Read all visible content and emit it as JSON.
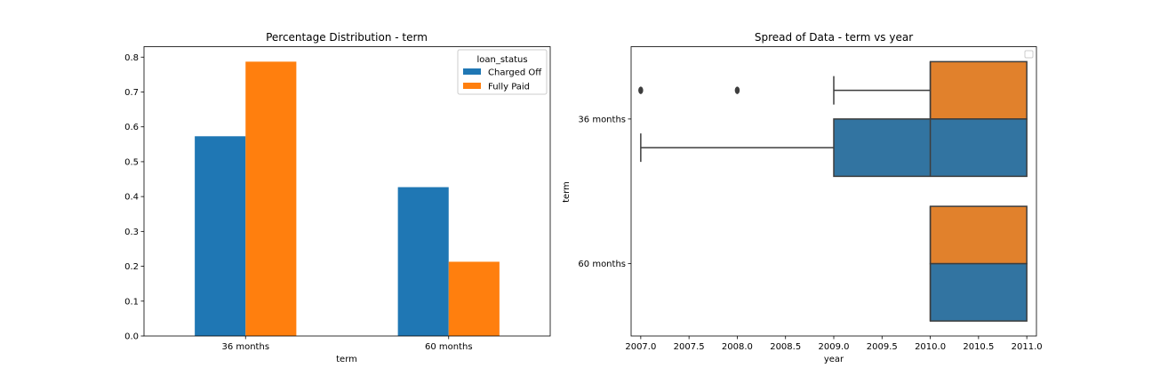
{
  "colors": {
    "charged_off_bar": "#1f77b4",
    "fully_paid_bar": "#ff7f0e",
    "box_blue": "#3274a1",
    "box_orange": "#e1812c",
    "box_edge": "#3d3d3d",
    "legend_edge": "#cccccc"
  },
  "chart_data": [
    {
      "type": "bar",
      "title": "Percentage Distribution - term",
      "xlabel": "term",
      "ylabel": "",
      "categories": [
        "36 months",
        "60 months"
      ],
      "series": [
        {
          "name": "Charged Off",
          "values": [
            0.573,
            0.427
          ],
          "color": "#1f77b4"
        },
        {
          "name": "Fully Paid",
          "values": [
            0.787,
            0.213
          ],
          "color": "#ff7f0e"
        }
      ],
      "ylim": [
        0,
        0.83
      ],
      "yticks": [
        0.0,
        0.1,
        0.2,
        0.3,
        0.4,
        0.5,
        0.6,
        0.7,
        0.8
      ],
      "ytick_labels": [
        "0.0",
        "0.1",
        "0.2",
        "0.3",
        "0.4",
        "0.5",
        "0.6",
        "0.7",
        "0.8"
      ],
      "legend": {
        "title": "loan_status",
        "position": "top-right"
      },
      "grid": false
    },
    {
      "type": "box",
      "orientation": "horizontal",
      "title": "Spread of Data - term vs year",
      "xlabel": "year",
      "ylabel": "term",
      "categories": [
        "36 months",
        "60 months"
      ],
      "xlim": [
        2006.9,
        2011.1
      ],
      "xticks": [
        2007.0,
        2007.5,
        2008.0,
        2008.5,
        2009.0,
        2009.5,
        2010.0,
        2010.5,
        2011.0
      ],
      "xtick_labels": [
        "2007.0",
        "2007.5",
        "2008.0",
        "2008.5",
        "2009.0",
        "2009.5",
        "2010.0",
        "2010.5",
        "2011.0"
      ],
      "boxes": [
        {
          "category": "36 months",
          "group": "Fully Paid",
          "color": "#e1812c",
          "whisker_low": 2009.0,
          "q1": 2010.0,
          "median": 2010.0,
          "q3": 2011.0,
          "whisker_high": 2011.0,
          "outliers": [
            2007.0,
            2008.0
          ]
        },
        {
          "category": "36 months",
          "group": "Charged Off",
          "color": "#3274a1",
          "whisker_low": 2007.0,
          "q1": 2009.0,
          "median": 2010.0,
          "q3": 2011.0,
          "whisker_high": 2011.0,
          "outliers": []
        },
        {
          "category": "60 months",
          "group": "Fully Paid",
          "color": "#e1812c",
          "whisker_low": 2010.0,
          "q1": 2010.0,
          "median": 2010.0,
          "q3": 2011.0,
          "whisker_high": 2011.0,
          "outliers": []
        },
        {
          "category": "60 months",
          "group": "Charged Off",
          "color": "#3274a1",
          "whisker_low": 2010.0,
          "q1": 2010.0,
          "median": 2010.0,
          "q3": 2011.0,
          "whisker_high": 2011.0,
          "outliers": []
        }
      ],
      "legend": {
        "position": "top-right",
        "entries": []
      },
      "grid": false
    }
  ]
}
